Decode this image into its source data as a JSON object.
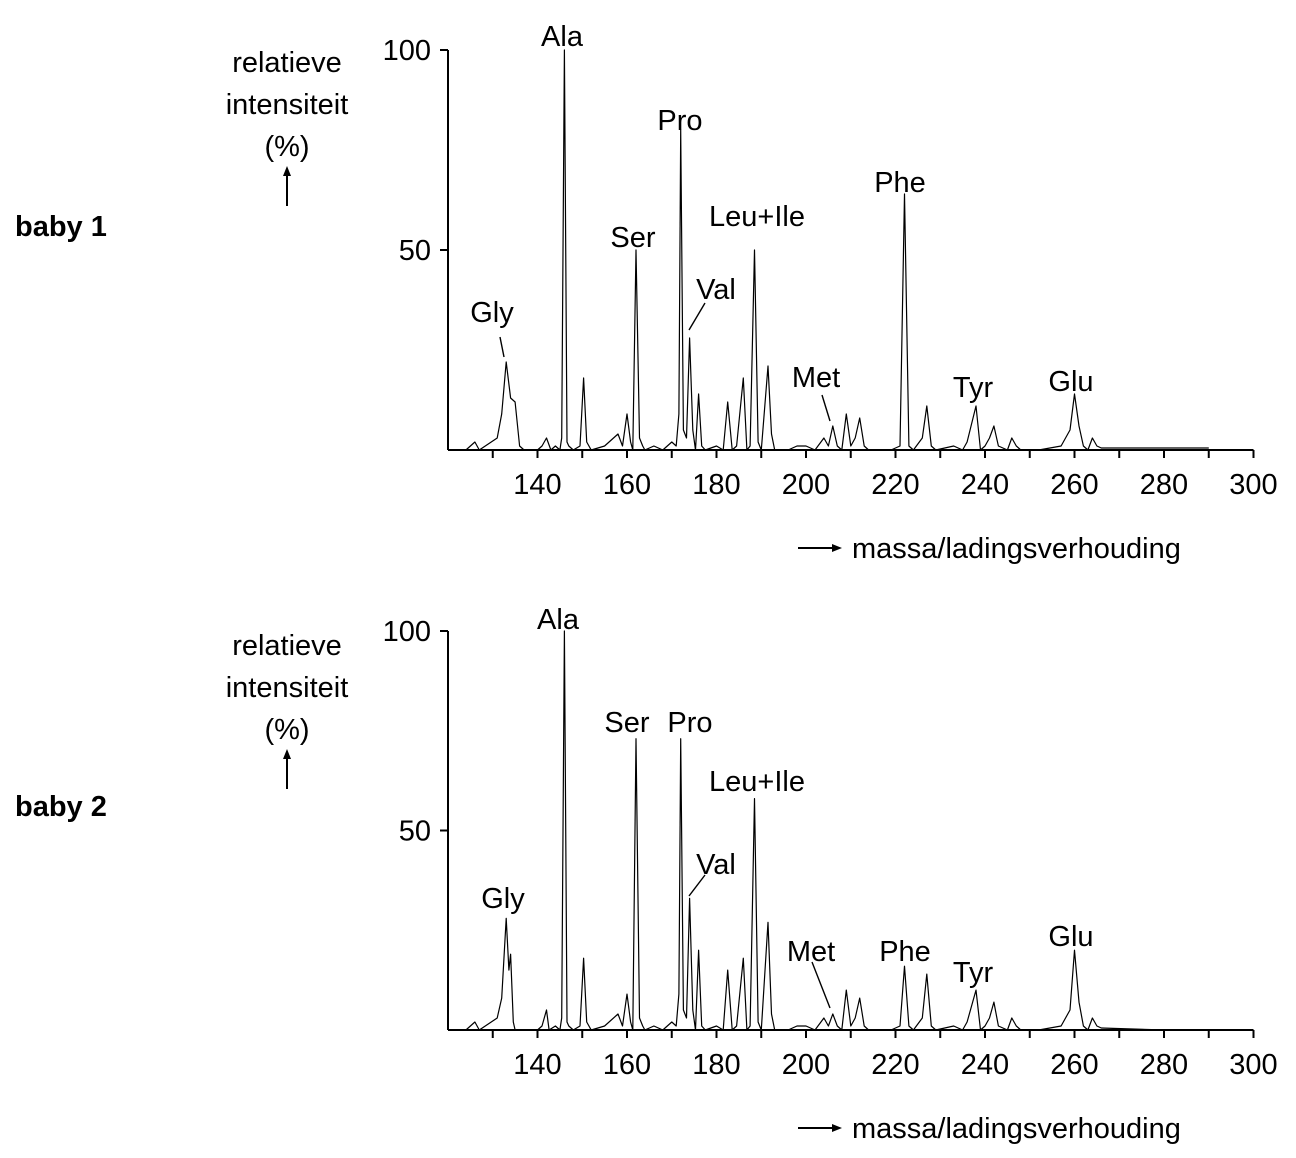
{
  "chart_data": [
    {
      "type": "line",
      "panel_label": "baby 1",
      "ylabel": [
        "relatieve",
        "intensiteit",
        "(%)"
      ],
      "xlabel": "massa/ladingsverhouding",
      "xlim": [
        120,
        300
      ],
      "ylim": [
        0,
        100
      ],
      "xticks": [
        140,
        160,
        180,
        200,
        220,
        240,
        260,
        280,
        300
      ],
      "yticks": [
        50,
        100
      ],
      "points": [
        [
          124,
          0
        ],
        [
          126,
          2
        ],
        [
          127,
          0
        ],
        [
          131,
          3
        ],
        [
          132,
          9
        ],
        [
          133,
          22
        ],
        [
          134,
          13
        ],
        [
          135,
          12
        ],
        [
          136,
          1
        ],
        [
          137,
          0
        ],
        [
          140,
          0
        ],
        [
          141,
          1
        ],
        [
          142,
          3
        ],
        [
          143,
          0
        ],
        [
          144,
          1
        ],
        [
          145,
          0
        ],
        [
          145.4,
          3
        ],
        [
          146,
          100
        ],
        [
          146.6,
          2
        ],
        [
          147,
          1
        ],
        [
          148,
          0
        ],
        [
          149.5,
          1
        ],
        [
          150.3,
          18
        ],
        [
          151,
          2
        ],
        [
          152,
          0
        ],
        [
          155,
          1
        ],
        [
          158,
          4
        ],
        [
          159,
          1
        ],
        [
          160,
          9
        ],
        [
          160.8,
          2
        ],
        [
          161.3,
          0
        ],
        [
          162,
          50
        ],
        [
          162.8,
          3
        ],
        [
          163.5,
          1
        ],
        [
          164,
          0
        ],
        [
          166,
          1
        ],
        [
          168,
          0
        ],
        [
          170,
          2
        ],
        [
          171,
          1
        ],
        [
          171.6,
          9
        ],
        [
          172,
          80
        ],
        [
          172.6,
          5
        ],
        [
          173.3,
          3
        ],
        [
          174,
          28
        ],
        [
          174.7,
          5
        ],
        [
          175.3,
          0
        ],
        [
          176,
          14
        ],
        [
          176.7,
          1
        ],
        [
          177.5,
          0
        ],
        [
          180,
          1
        ],
        [
          181.5,
          0
        ],
        [
          182.5,
          12
        ],
        [
          183.5,
          0
        ],
        [
          184.5,
          1
        ],
        [
          186,
          18
        ],
        [
          186.8,
          0
        ],
        [
          187.5,
          1
        ],
        [
          188.5,
          50
        ],
        [
          189.3,
          2
        ],
        [
          190,
          0
        ],
        [
          191.5,
          21
        ],
        [
          192.3,
          4
        ],
        [
          193,
          0
        ],
        [
          196,
          0
        ],
        [
          198,
          1
        ],
        [
          200,
          1
        ],
        [
          202,
          0
        ],
        [
          204,
          3
        ],
        [
          205,
          1
        ],
        [
          206,
          6
        ],
        [
          207,
          1
        ],
        [
          208,
          0
        ],
        [
          209,
          9
        ],
        [
          210,
          1
        ],
        [
          211,
          3
        ],
        [
          212,
          8
        ],
        [
          213,
          1
        ],
        [
          214,
          0
        ],
        [
          219,
          0
        ],
        [
          221,
          1
        ],
        [
          222,
          64
        ],
        [
          223,
          1
        ],
        [
          224,
          0
        ],
        [
          226,
          3
        ],
        [
          227,
          11
        ],
        [
          228,
          1
        ],
        [
          229,
          0
        ],
        [
          233,
          1
        ],
        [
          235,
          0
        ],
        [
          236,
          2
        ],
        [
          238,
          11
        ],
        [
          239,
          0
        ],
        [
          240,
          1
        ],
        [
          241,
          3
        ],
        [
          242,
          6
        ],
        [
          243,
          1
        ],
        [
          245,
          0
        ],
        [
          246,
          3
        ],
        [
          247,
          1
        ],
        [
          248,
          0
        ],
        [
          252,
          0
        ],
        [
          257,
          1
        ],
        [
          259,
          5
        ],
        [
          260,
          14
        ],
        [
          261,
          6
        ],
        [
          262,
          1
        ],
        [
          263,
          0
        ],
        [
          264,
          3
        ],
        [
          265,
          1
        ],
        [
          266,
          0.5
        ],
        [
          290,
          0.5
        ]
      ],
      "peak_labels": [
        {
          "text": "Gly",
          "x": 133,
          "y": 22
        },
        {
          "text": "Ala",
          "x": 146,
          "y": 100
        },
        {
          "text": "Ser",
          "x": 162,
          "y": 50
        },
        {
          "text": "Pro",
          "x": 172,
          "y": 80
        },
        {
          "text": "Val",
          "x": 174,
          "y": 28
        },
        {
          "text": "Leu+Ile",
          "x": 188.5,
          "y": 50
        },
        {
          "text": "Met",
          "x": 206,
          "y": 6
        },
        {
          "text": "Phe",
          "x": 222,
          "y": 64
        },
        {
          "text": "Tyr",
          "x": 238,
          "y": 11
        },
        {
          "text": "Glu",
          "x": 260,
          "y": 14
        }
      ]
    },
    {
      "type": "line",
      "panel_label": "baby 2",
      "ylabel": [
        "relatieve",
        "intensiteit",
        "(%)"
      ],
      "xlabel": "massa/ladingsverhouding",
      "xlim": [
        120,
        300
      ],
      "ylim": [
        0,
        100
      ],
      "xticks": [
        140,
        160,
        180,
        200,
        220,
        240,
        260,
        280,
        300
      ],
      "yticks": [
        50,
        100
      ],
      "points": [
        [
          124,
          0
        ],
        [
          126,
          2
        ],
        [
          127,
          0
        ],
        [
          131,
          3
        ],
        [
          132,
          8
        ],
        [
          133,
          28
        ],
        [
          133.6,
          15
        ],
        [
          134,
          19
        ],
        [
          134.6,
          2
        ],
        [
          135,
          0
        ],
        [
          140,
          0
        ],
        [
          141,
          1
        ],
        [
          142,
          5
        ],
        [
          142.6,
          0
        ],
        [
          144,
          1
        ],
        [
          145,
          0
        ],
        [
          145.4,
          3
        ],
        [
          146,
          100
        ],
        [
          146.6,
          2
        ],
        [
          147,
          1
        ],
        [
          148,
          0
        ],
        [
          149.5,
          1
        ],
        [
          150.3,
          18
        ],
        [
          151,
          2
        ],
        [
          152,
          0
        ],
        [
          155,
          1
        ],
        [
          158,
          4
        ],
        [
          159,
          1
        ],
        [
          160,
          9
        ],
        [
          160.8,
          2
        ],
        [
          161.3,
          0
        ],
        [
          162,
          73
        ],
        [
          162.8,
          3
        ],
        [
          163.5,
          1
        ],
        [
          164,
          0
        ],
        [
          166,
          1
        ],
        [
          168,
          0
        ],
        [
          170,
          2
        ],
        [
          171,
          1
        ],
        [
          171.6,
          9
        ],
        [
          172,
          73
        ],
        [
          172.6,
          5
        ],
        [
          173.3,
          3
        ],
        [
          174,
          33
        ],
        [
          174.7,
          5
        ],
        [
          175.3,
          0
        ],
        [
          176,
          20
        ],
        [
          176.7,
          1
        ],
        [
          177.5,
          0
        ],
        [
          180,
          1
        ],
        [
          181.5,
          0
        ],
        [
          182.5,
          15
        ],
        [
          183.5,
          0
        ],
        [
          184.5,
          1
        ],
        [
          186,
          18
        ],
        [
          186.8,
          0
        ],
        [
          187.5,
          1
        ],
        [
          188.5,
          58
        ],
        [
          189.3,
          2
        ],
        [
          190,
          0
        ],
        [
          191.5,
          27
        ],
        [
          192.3,
          4
        ],
        [
          193,
          0
        ],
        [
          196,
          0
        ],
        [
          198,
          1
        ],
        [
          200,
          1
        ],
        [
          202,
          0
        ],
        [
          204,
          3
        ],
        [
          205,
          1
        ],
        [
          206,
          4
        ],
        [
          207,
          1
        ],
        [
          208,
          0
        ],
        [
          209,
          10
        ],
        [
          210,
          1
        ],
        [
          211,
          3
        ],
        [
          212,
          8
        ],
        [
          213,
          1
        ],
        [
          214,
          0
        ],
        [
          219,
          0
        ],
        [
          221,
          1
        ],
        [
          222,
          16
        ],
        [
          223,
          1
        ],
        [
          224,
          0
        ],
        [
          226,
          3
        ],
        [
          227,
          14
        ],
        [
          228,
          1
        ],
        [
          229,
          0
        ],
        [
          233,
          1
        ],
        [
          235,
          0
        ],
        [
          236,
          2
        ],
        [
          238,
          10
        ],
        [
          239,
          0
        ],
        [
          240,
          1
        ],
        [
          241,
          3
        ],
        [
          242,
          7
        ],
        [
          243,
          1
        ],
        [
          245,
          0
        ],
        [
          246,
          3
        ],
        [
          247,
          1
        ],
        [
          248,
          0
        ],
        [
          252,
          0
        ],
        [
          257,
          1
        ],
        [
          259,
          5
        ],
        [
          260,
          20
        ],
        [
          261,
          7
        ],
        [
          262,
          1
        ],
        [
          263,
          0
        ],
        [
          264,
          3
        ],
        [
          265,
          1
        ],
        [
          266,
          0.5
        ],
        [
          280,
          0
        ]
      ],
      "peak_labels": [
        {
          "text": "Gly",
          "x": 133,
          "y": 28
        },
        {
          "text": "Ala",
          "x": 146,
          "y": 100
        },
        {
          "text": "Ser",
          "x": 162,
          "y": 73
        },
        {
          "text": "Pro",
          "x": 172,
          "y": 73
        },
        {
          "text": "Val",
          "x": 174,
          "y": 33
        },
        {
          "text": "Leu+Ile",
          "x": 188.5,
          "y": 58
        },
        {
          "text": "Met",
          "x": 206,
          "y": 4
        },
        {
          "text": "Phe",
          "x": 222,
          "y": 16
        },
        {
          "text": "Tyr",
          "x": 238,
          "y": 10
        },
        {
          "text": "Glu",
          "x": 260,
          "y": 20
        }
      ]
    }
  ]
}
